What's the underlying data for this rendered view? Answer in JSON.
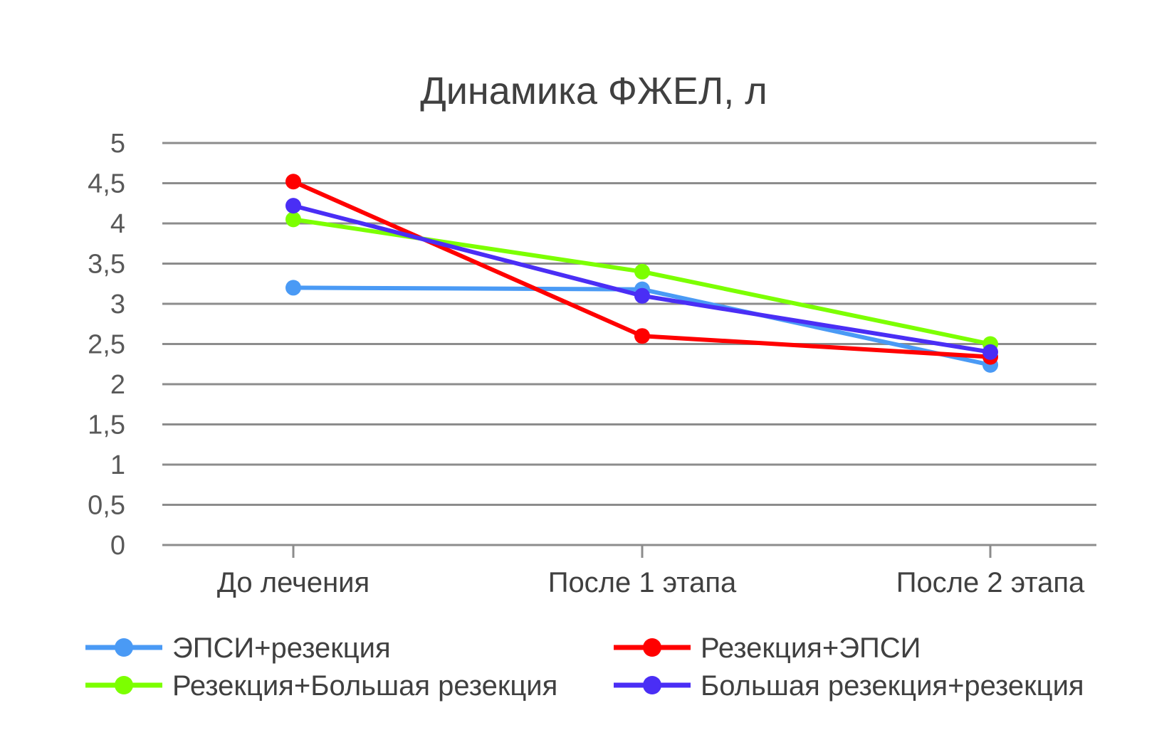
{
  "chart_data": {
    "type": "line",
    "title": "Динамика ФЖЕЛ, л",
    "xlabel": "",
    "ylabel": "",
    "categories": [
      "До лечения",
      "После 1 этапа",
      "После 2 этапа"
    ],
    "ylim": [
      0,
      5
    ],
    "yticks": [
      0,
      0.5,
      1,
      1.5,
      2,
      2.5,
      3,
      3.5,
      4,
      4.5,
      5
    ],
    "ytick_labels": [
      "0",
      "0,5",
      "1",
      "1,5",
      "2",
      "2,5",
      "3",
      "3,5",
      "4",
      "4,5",
      "5"
    ],
    "grid": true,
    "legend_position": "bottom",
    "series": [
      {
        "name": "ЭПСИ+резекция",
        "color": "#4a9af5",
        "values": [
          3.2,
          3.18,
          2.24
        ]
      },
      {
        "name": "Резекция+ЭПСИ",
        "color": "#ff0000",
        "values": [
          4.52,
          2.6,
          2.34
        ]
      },
      {
        "name": "Резекция+Большая резекция",
        "color": "#7cff00",
        "values": [
          4.05,
          3.4,
          2.5
        ]
      },
      {
        "name": "Большая резекция+резекция",
        "color": "#4a2ef5",
        "values": [
          4.22,
          3.1,
          2.4
        ]
      }
    ]
  }
}
